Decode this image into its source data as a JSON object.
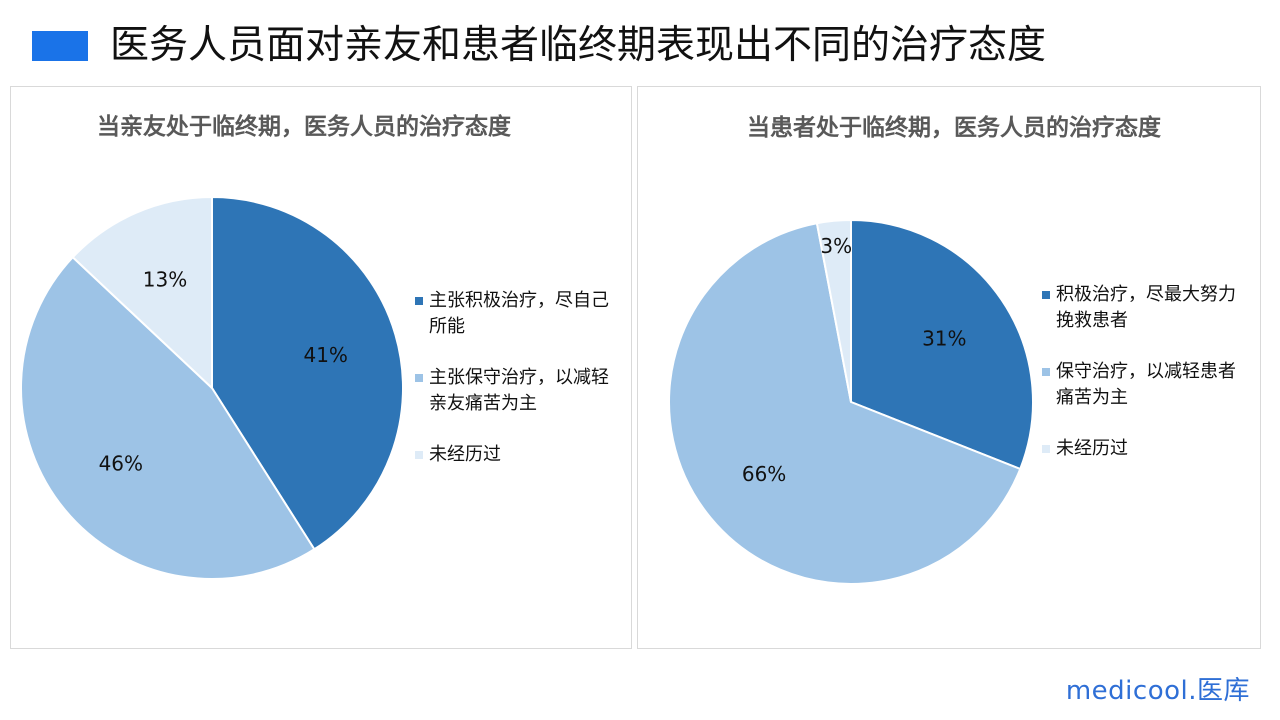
{
  "header": {
    "title": "医务人员面对亲友和患者临终期表现出不同的治疗态度",
    "accent_color": "#1a73e8"
  },
  "chart_data": [
    {
      "type": "pie",
      "title": "当亲友处于临终期，医务人员的治疗态度",
      "categories": [
        "主张积极治疗，尽自己所能",
        "主张保守治疗，以减轻亲友痛苦为主",
        "未经历过"
      ],
      "values": [
        41,
        46,
        13
      ],
      "data_labels": [
        "41%",
        "46%",
        "13%"
      ],
      "colors": [
        "#2e75b6",
        "#9dc3e6",
        "#deebf7"
      ],
      "legend_placement": "right"
    },
    {
      "type": "pie",
      "title": "当患者处于临终期，医务人员的治疗态度",
      "categories": [
        "积极治疗，尽最大努力挽救患者",
        "保守治疗，以减轻患者痛苦为主",
        "未经历过"
      ],
      "values": [
        31,
        66,
        3
      ],
      "data_labels": [
        "31%",
        "66%",
        "3%"
      ],
      "colors": [
        "#2e75b6",
        "#9dc3e6",
        "#deebf7"
      ],
      "legend_placement": "right"
    }
  ],
  "brand": {
    "text": "medicool.医库"
  }
}
